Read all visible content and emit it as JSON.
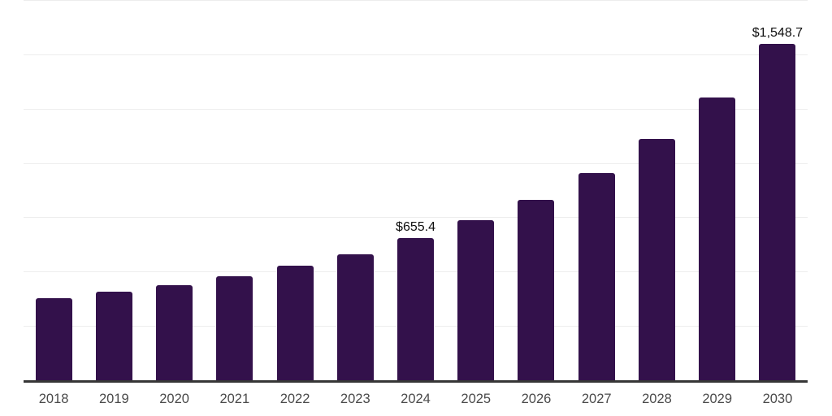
{
  "chart_data": {
    "type": "bar",
    "title": "",
    "xlabel": "",
    "ylabel": "",
    "categories": [
      "2018",
      "2019",
      "2020",
      "2021",
      "2022",
      "2023",
      "2024",
      "2025",
      "2026",
      "2027",
      "2028",
      "2029",
      "2030"
    ],
    "values": [
      377,
      407,
      439,
      480,
      527,
      579,
      655.4,
      737,
      832,
      952,
      1112,
      1300,
      1548.7
    ],
    "data_labels": {
      "2024": "$655.4",
      "2030": "$1,548.7"
    },
    "ylim": [
      0,
      1750
    ],
    "grid_interval": 250,
    "grid": "horizontal-only",
    "legend": "none",
    "y_tick_labels": "none",
    "colors": {
      "bar": "#33114B",
      "gridline": "#ededed",
      "axis_line": "#363636",
      "tick_label": "#4a4a4a",
      "data_label": "#0f0f0f",
      "background": "#ffffff"
    }
  }
}
